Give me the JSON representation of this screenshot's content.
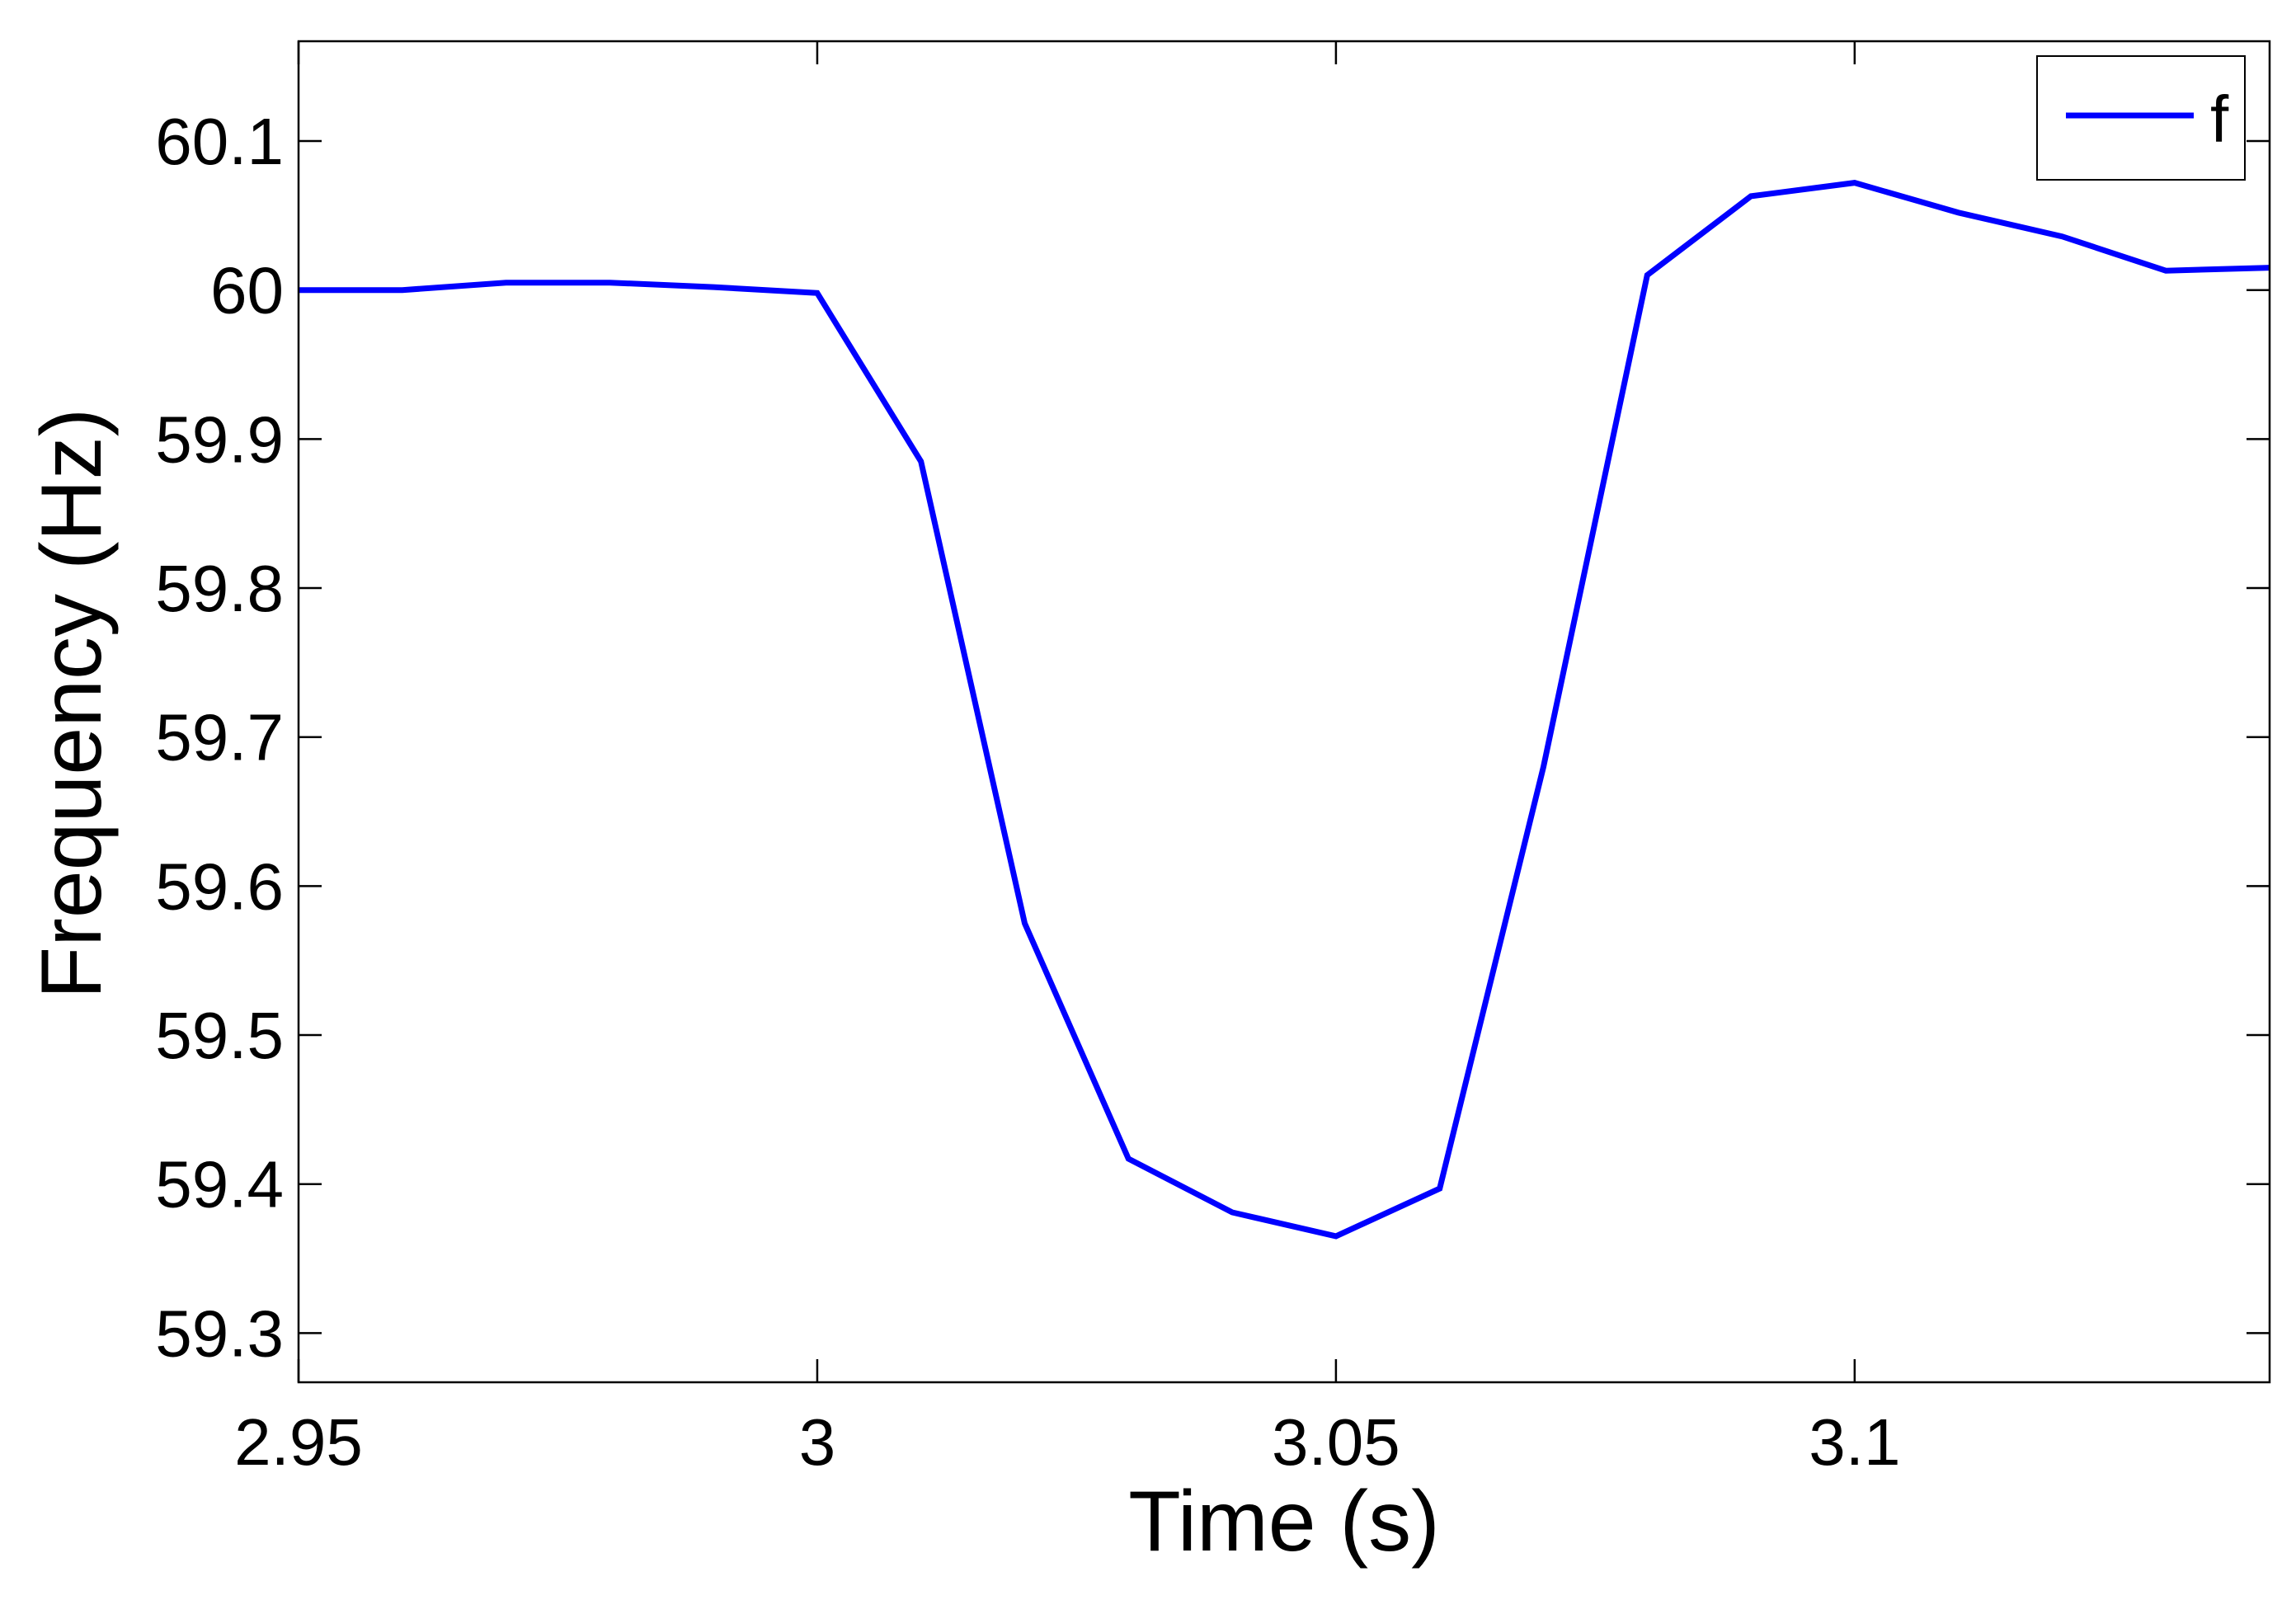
{
  "chart_data": {
    "type": "line",
    "xlabel": "Time (s)",
    "ylabel": "Frequency (Hz)",
    "xlim": [
      2.95,
      3.14
    ],
    "ylim": [
      59.267,
      60.167
    ],
    "x_ticks": [
      2.95,
      3.0,
      3.05,
      3.1
    ],
    "x_tick_labels": [
      "2.95",
      "3",
      "3.05",
      "3.1"
    ],
    "y_ticks": [
      59.3,
      59.4,
      59.5,
      59.6,
      59.7,
      59.8,
      59.9,
      60.0,
      60.1
    ],
    "y_tick_labels": [
      "59.3",
      "59.4",
      "59.5",
      "59.6",
      "59.7",
      "59.8",
      "59.9",
      "60",
      "60.1"
    ],
    "grid": false,
    "legend": {
      "position": "top-right"
    },
    "series": [
      {
        "name": "f",
        "color": "#0000ff",
        "x": [
          2.95,
          2.96,
          2.97,
          2.98,
          2.99,
          3.0,
          3.01,
          3.02,
          3.03,
          3.04,
          3.05,
          3.06,
          3.07,
          3.08,
          3.09,
          3.1,
          3.11,
          3.12,
          3.13,
          3.14
        ],
        "y": [
          60.0,
          60.0,
          60.005,
          60.005,
          60.002,
          59.998,
          59.885,
          59.575,
          59.417,
          59.381,
          59.365,
          59.397,
          59.68,
          60.01,
          60.063,
          60.072,
          60.052,
          60.036,
          60.013,
          60.015
        ]
      }
    ]
  }
}
